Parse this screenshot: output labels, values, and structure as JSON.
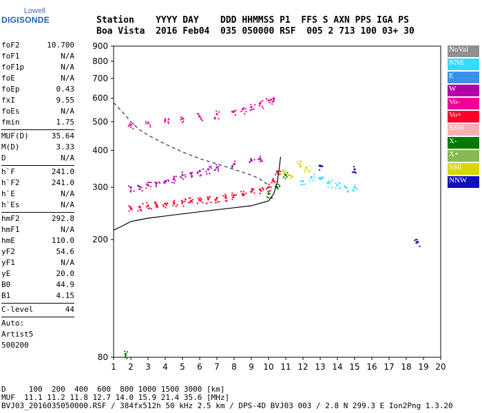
{
  "logo": {
    "line1": "Lowell",
    "line2": "DIGISONDE"
  },
  "header": {
    "line1": "Station    YYYY DAY    DDD HHMMSS P1  FFS S AXN PPS IGA PS",
    "line2": "Boa Vista  2016 Feb04  035 050000 RSF  005 2 713 100 03+ 30"
  },
  "params": [
    {
      "label": "foF2",
      "value": "10.700"
    },
    {
      "label": "foF1",
      "value": "N/A"
    },
    {
      "label": "foF1p",
      "value": "N/A"
    },
    {
      "label": "foE",
      "value": "N/A"
    },
    {
      "label": "foEp",
      "value": "0.43"
    },
    {
      "label": "fxI",
      "value": "9.55"
    },
    {
      "label": "foEs",
      "value": "N/A"
    },
    {
      "label": "fmin",
      "value": "1.75"
    },
    {
      "sep": true
    },
    {
      "label": "MUF(D)",
      "value": "35.64"
    },
    {
      "label": "M(D)",
      "value": "3.33"
    },
    {
      "label": "D",
      "value": "N/A"
    },
    {
      "sep": true
    },
    {
      "label": "h`F",
      "value": "241.0"
    },
    {
      "label": "h`F2",
      "value": "241.0"
    },
    {
      "label": "h`E",
      "value": "N/A"
    },
    {
      "label": "h`Es",
      "value": "N/A"
    },
    {
      "sep": true
    },
    {
      "label": "hmF2",
      "value": "292.8"
    },
    {
      "label": "hmF1",
      "value": "N/A"
    },
    {
      "label": "hmE",
      "value": "110.0"
    },
    {
      "label": "yF2",
      "value": "54.6"
    },
    {
      "label": "yF1",
      "value": "N/A"
    },
    {
      "label": "yE",
      "value": "20.0"
    },
    {
      "label": "B0",
      "value": "44.9"
    },
    {
      "label": "B1",
      "value": "4.15"
    },
    {
      "sep": true
    },
    {
      "label": "C-level",
      "value": "44"
    },
    {
      "sep": true
    },
    {
      "text": "Auto:"
    },
    {
      "text": "Artist5"
    },
    {
      "text": "500200"
    }
  ],
  "legend": [
    {
      "label": "NoVal",
      "color": "#909090"
    },
    {
      "label": "NNE",
      "color": "#33dcff"
    },
    {
      "label": "E",
      "color": "#3a8fe8"
    },
    {
      "label": "W",
      "color": "#b000a8"
    },
    {
      "label": "Vo-",
      "color": "#f0009a"
    },
    {
      "label": "Vo+",
      "color": "#ff0028"
    },
    {
      "label": "SSW",
      "color": "#f7b0b0"
    },
    {
      "label": "X-",
      "color": "#007a00"
    },
    {
      "label": "X+",
      "color": "#88b850"
    },
    {
      "label": "SSE",
      "color": "#d8d800"
    },
    {
      "label": "NNW",
      "color": "#1010c0"
    }
  ],
  "footer": {
    "line1": "D     100  200  400  600  800 1000 1500 3000 [km]",
    "line2": "MUF  11.1 11.2 11.8 12.7 14.0 15.9 21.4 35.6 [MHz]",
    "line3": "BVJ03_2016035050000.RSF / 384fx512h 50 kHz 2.5 km / DPS-4D BVJ03 003 / 2.8 N 299.3 E Ion2Png 1.3.20"
  },
  "chart_data": {
    "type": "scatter",
    "xlim": [
      1,
      20
    ],
    "ylim": [
      80,
      900
    ],
    "x_ticks": [
      1,
      2,
      3,
      4,
      5,
      6,
      7,
      8,
      9,
      10,
      11,
      12,
      13,
      14,
      15,
      16,
      17,
      18,
      19,
      20
    ],
    "y_ticks": [
      80,
      200,
      300,
      400,
      500,
      600,
      700,
      800,
      900
    ],
    "y_scale": "log",
    "grid": false,
    "legend_position": "right",
    "series": [
      {
        "name": "Vo+",
        "color": "#ff0028",
        "x": [
          2.0,
          2.5,
          3.0,
          3.5,
          4.0,
          4.5,
          5.0,
          5.5,
          6.0,
          6.5,
          7.0,
          7.5,
          8.0,
          8.5,
          9.0,
          9.5,
          10.0,
          10.3,
          10.5
        ],
        "y": [
          255,
          258,
          260,
          262,
          264,
          266,
          268,
          270,
          272,
          274,
          276,
          278,
          282,
          285,
          290,
          295,
          300,
          315,
          340
        ]
      },
      {
        "name": "W",
        "color": "#b000a8",
        "x": [
          2.0,
          2.5,
          3.0,
          3.5,
          4.0,
          4.5,
          5.0,
          5.5,
          6.0,
          6.5,
          7.0,
          8.0,
          9.0,
          9.5
        ],
        "y": [
          300,
          302,
          305,
          310,
          315,
          320,
          330,
          335,
          340,
          345,
          350,
          360,
          370,
          375
        ]
      },
      {
        "name": "Vo-",
        "color": "#f0009a",
        "x": [
          2.0,
          3.0,
          4.0,
          5.0,
          6.0,
          7.0,
          8.0,
          8.5,
          9.0,
          9.5,
          10.0,
          10.3
        ],
        "y": [
          488,
          495,
          505,
          512,
          520,
          530,
          542,
          550,
          560,
          575,
          590,
          600
        ]
      },
      {
        "name": "NNE",
        "color": "#33dcff",
        "x": [
          12.0,
          12.5,
          13.0,
          13.5,
          14.0,
          14.5,
          15.0
        ],
        "y": [
          315,
          325,
          320,
          310,
          305,
          300,
          300
        ]
      },
      {
        "name": "X-",
        "color": "#007a00",
        "x": [
          1.7,
          10.0,
          10.5,
          11.0
        ],
        "y": [
          82,
          285,
          300,
          330
        ]
      },
      {
        "name": "SSE",
        "color": "#d8d800",
        "x": [
          10.8,
          11.2,
          11.8,
          12.2
        ],
        "y": [
          340,
          330,
          360,
          350
        ]
      },
      {
        "name": "NNW",
        "color": "#1010c0",
        "x": [
          13.0,
          15.0,
          18.6
        ],
        "y": [
          355,
          345,
          195
        ]
      }
    ],
    "profile_curve": {
      "x": [
        1.0,
        1.5,
        2.0,
        2.5,
        3.0,
        4.0,
        5.0,
        6.0,
        7.0,
        8.0,
        9.0,
        10.0,
        10.3,
        10.5,
        10.6,
        10.7
      ],
      "y": [
        215,
        222,
        230,
        233,
        236,
        240,
        244,
        248,
        252,
        256,
        260,
        270,
        285,
        310,
        340,
        380
      ]
    },
    "muf_curve": {
      "x": [
        1.0,
        1.5,
        2.0,
        2.5,
        3.0,
        4.0,
        5.0,
        6.0,
        7.0,
        8.0,
        9.0,
        9.5,
        10.0,
        10.3
      ],
      "y": [
        580,
        540,
        500,
        470,
        450,
        420,
        395,
        375,
        360,
        345,
        330,
        320,
        305,
        295
      ]
    }
  }
}
